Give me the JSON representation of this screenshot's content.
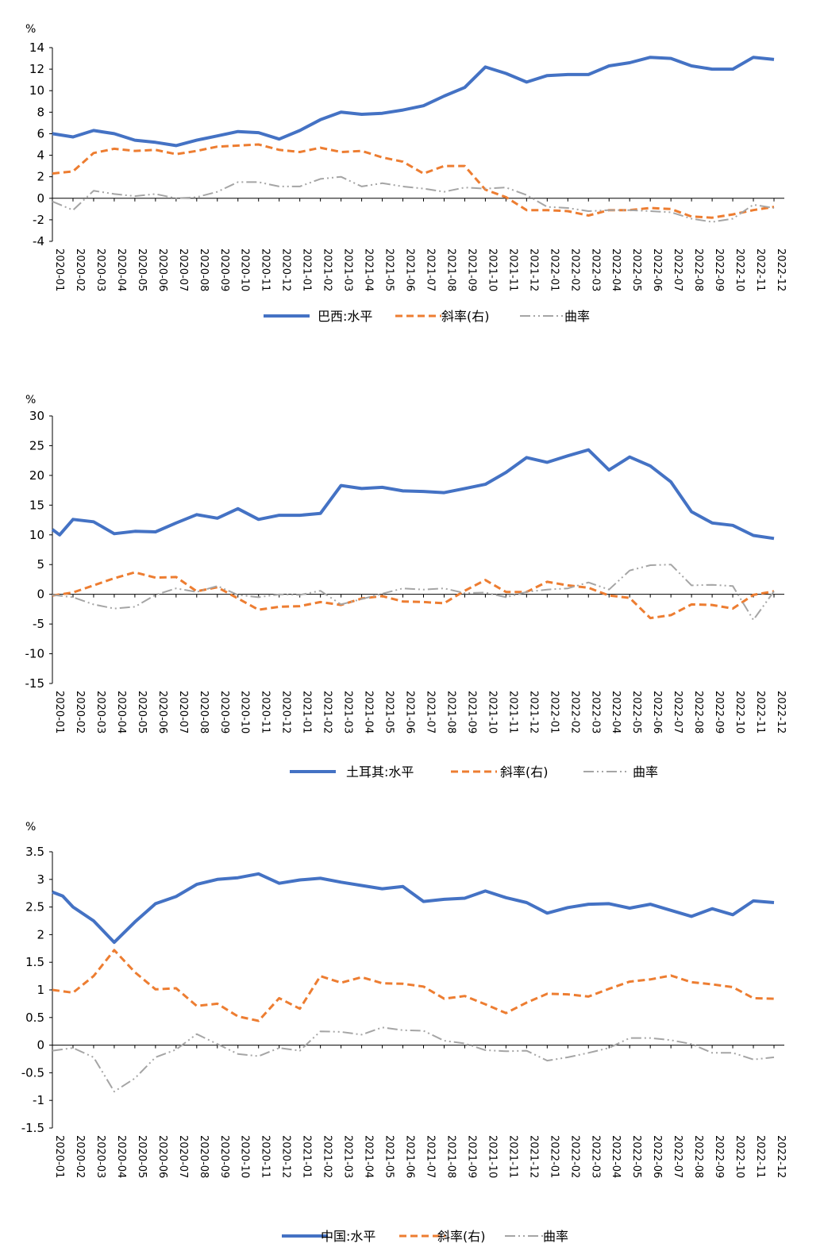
{
  "colors": {
    "level": "#4472C4",
    "slope": "#ED7D31",
    "curvature": "#A5A5A5",
    "axis": "#000000"
  },
  "chart_data": [
    {
      "type": "line",
      "unit": "%",
      "ylim": [
        -4,
        14
      ],
      "yticks": [
        -4,
        -2,
        0,
        2,
        4,
        6,
        8,
        10,
        12,
        14
      ],
      "categories": [
        "2020-01",
        "2020-02",
        "2020-03",
        "2020-04",
        "2020-05",
        "2020-06",
        "2020-07",
        "2020-08",
        "2020-09",
        "2020-10",
        "2020-11",
        "2020-12",
        "2021-01",
        "2021-02",
        "2021-03",
        "2021-04",
        "2021-05",
        "2021-06",
        "2021-07",
        "2021-08",
        "2021-09",
        "2021-10",
        "2021-11",
        "2021-12",
        "2022-01",
        "2022-02",
        "2022-03",
        "2022-04",
        "2022-05",
        "2022-06",
        "2022-07",
        "2022-08",
        "2022-09",
        "2022-10",
        "2022-11",
        "2022-12"
      ],
      "series": [
        {
          "name": "巴西:水平",
          "key": "level",
          "x": [
            0,
            1,
            2,
            3,
            4,
            5,
            6,
            7,
            8,
            9,
            10,
            11,
            12,
            13,
            14,
            15,
            16,
            17,
            18,
            19,
            20,
            21,
            22,
            23,
            24,
            25,
            26,
            27,
            28,
            29,
            30,
            31,
            32,
            33,
            34,
            35
          ],
          "values": [
            6.0,
            5.7,
            6.3,
            6.0,
            5.4,
            5.2,
            4.9,
            5.4,
            5.8,
            6.2,
            6.1,
            5.5,
            6.3,
            7.3,
            8.0,
            7.8,
            7.9,
            8.2,
            8.6,
            9.5,
            10.3,
            12.2,
            11.6,
            10.8,
            11.4,
            11.5,
            11.5,
            12.3,
            12.6,
            13.1,
            13.0,
            12.3,
            12.0,
            12.0,
            13.1,
            12.9
          ]
        },
        {
          "name": "斜率(右)",
          "key": "slope",
          "x": [
            0,
            1,
            2,
            3,
            4,
            5,
            6,
            7,
            8,
            9,
            10,
            11,
            12,
            13,
            14,
            15,
            16,
            17,
            18,
            19,
            20,
            21,
            22,
            23,
            24,
            25,
            26,
            27,
            28,
            29,
            30,
            31,
            32,
            33,
            34,
            35
          ],
          "values": [
            2.3,
            2.5,
            4.2,
            4.6,
            4.4,
            4.5,
            4.1,
            4.4,
            4.8,
            4.9,
            5.0,
            4.5,
            4.3,
            4.7,
            4.3,
            4.4,
            3.8,
            3.4,
            2.3,
            3.0,
            3.0,
            0.8,
            0.1,
            -1.1,
            -1.1,
            -1.2,
            -1.6,
            -1.1,
            -1.1,
            -0.9,
            -1.0,
            -1.7,
            -1.8,
            -1.5,
            -1.1,
            -0.8
          ]
        },
        {
          "name": "曲率",
          "key": "curvature",
          "x": [
            0,
            1,
            2,
            3,
            4,
            5,
            6,
            7,
            8,
            9,
            10,
            11,
            12,
            13,
            14,
            15,
            16,
            17,
            18,
            19,
            20,
            21,
            22,
            23,
            24,
            25,
            26,
            27,
            28,
            29,
            30,
            31,
            32,
            33,
            34,
            35
          ],
          "values": [
            -0.3,
            -1.1,
            0.7,
            0.4,
            0.2,
            0.4,
            0.0,
            0.1,
            0.6,
            1.5,
            1.5,
            1.1,
            1.1,
            1.8,
            2.0,
            1.1,
            1.4,
            1.1,
            0.9,
            0.6,
            1.0,
            0.9,
            1.0,
            0.3,
            -0.8,
            -0.9,
            -1.2,
            -1.1,
            -1.1,
            -1.2,
            -1.3,
            -1.9,
            -2.2,
            -1.9,
            -0.6,
            -0.9
          ]
        }
      ]
    },
    {
      "type": "line",
      "unit": "%",
      "ylim": [
        -15,
        30
      ],
      "yticks": [
        -15,
        -10,
        -5,
        0,
        5,
        10,
        15,
        20,
        25,
        30
      ],
      "categories": [
        "2020-01",
        "2020-02",
        "2020-03",
        "2020-04",
        "2020-05",
        "2020-06",
        "2020-07",
        "2020-08",
        "2020-09",
        "2020-10",
        "2020-11",
        "2020-12",
        "2021-01",
        "2021-02",
        "2021-03",
        "2021-04",
        "2021-05",
        "2021-06",
        "2021-07",
        "2021-08",
        "2021-09",
        "2021-10",
        "2021-11",
        "2021-12",
        "2022-01",
        "2022-02",
        "2022-03",
        "2022-04",
        "2022-05",
        "2022-06",
        "2022-07",
        "2022-08",
        "2022-09",
        "2022-10",
        "2022-11",
        "2022-12"
      ],
      "series": [
        {
          "name": "土耳其:水平",
          "key": "level",
          "x": [
            0,
            0.35,
            1,
            2,
            3,
            4,
            5,
            6,
            7,
            8,
            9,
            10,
            11,
            12,
            13,
            14,
            15,
            16,
            17,
            18,
            19,
            20,
            21,
            22,
            23,
            24,
            25,
            26,
            27,
            28,
            29,
            30,
            31,
            32,
            33,
            34,
            35
          ],
          "values": [
            10.9,
            10.0,
            12.6,
            12.2,
            10.2,
            10.6,
            10.5,
            12.0,
            13.4,
            12.8,
            14.4,
            12.6,
            13.3,
            13.3,
            13.6,
            18.3,
            17.8,
            18.0,
            17.4,
            17.3,
            17.1,
            17.8,
            18.5,
            20.5,
            23.0,
            22.2,
            23.3,
            24.3,
            20.9,
            23.1,
            21.6,
            18.9,
            13.9,
            12.0,
            11.6,
            9.9,
            9.4
          ]
        },
        {
          "name": "斜率(右)",
          "key": "slope",
          "x": [
            0,
            1,
            2,
            3,
            4,
            5,
            6,
            7,
            8,
            9,
            10,
            11,
            12,
            13,
            14,
            15,
            16,
            17,
            18,
            19,
            20,
            21,
            22,
            23,
            24,
            25,
            26,
            27,
            28,
            29,
            30,
            31,
            32,
            33,
            34,
            35
          ],
          "values": [
            -0.2,
            0.3,
            1.5,
            2.7,
            3.7,
            2.8,
            2.9,
            0.5,
            1.2,
            -0.7,
            -2.6,
            -2.1,
            -2.0,
            -1.3,
            -1.8,
            -0.7,
            -0.3,
            -1.2,
            -1.3,
            -1.5,
            0.6,
            2.4,
            0.4,
            0.4,
            2.1,
            1.5,
            1.1,
            -0.2,
            -0.6,
            -4.0,
            -3.5,
            -1.7,
            -1.8,
            -2.4,
            -0.1,
            0.5
          ]
        },
        {
          "name": "曲率",
          "key": "curvature",
          "x": [
            0,
            1,
            2,
            3,
            4,
            5,
            6,
            7,
            8,
            9,
            10,
            11,
            12,
            13,
            14,
            15,
            16,
            17,
            18,
            19,
            20,
            21,
            22,
            23,
            24,
            25,
            26,
            27,
            28,
            29,
            30,
            31,
            32,
            33,
            34,
            35
          ],
          "values": [
            -0.1,
            -0.5,
            -1.7,
            -2.4,
            -2.1,
            -0.1,
            1.0,
            0.4,
            1.4,
            -0.1,
            -0.5,
            0.0,
            -0.1,
            0.6,
            -1.7,
            -0.8,
            0.1,
            1.0,
            0.8,
            1.0,
            0.2,
            0.3,
            -0.5,
            0.4,
            0.8,
            1.0,
            2.0,
            0.8,
            4.0,
            4.9,
            5.0,
            1.5,
            1.6,
            1.4,
            -4.3,
            0.5
          ]
        }
      ]
    },
    {
      "type": "line",
      "unit": "%",
      "ylim": [
        -1.5,
        3.5
      ],
      "yticks": [
        -1.5,
        -1,
        -0.5,
        0,
        0.5,
        1,
        1.5,
        2,
        2.5,
        3,
        3.5
      ],
      "categories": [
        "2020-01",
        "2020-02",
        "2020-03",
        "2020-04",
        "2020-05",
        "2020-06",
        "2020-07",
        "2020-08",
        "2020-09",
        "2020-10",
        "2020-11",
        "2020-12",
        "2021-01",
        "2021-02",
        "2021-03",
        "2021-04",
        "2021-05",
        "2021-06",
        "2021-07",
        "2021-08",
        "2021-09",
        "2021-10",
        "2021-11",
        "2021-12",
        "2022-01",
        "2022-02",
        "2022-03",
        "2022-04",
        "2022-05",
        "2022-06",
        "2022-07",
        "2022-08",
        "2022-09",
        "2022-10",
        "2022-11",
        "2022-12"
      ],
      "series": [
        {
          "name": "中国:水平",
          "key": "level",
          "x": [
            0,
            0.5,
            1,
            2,
            3,
            4,
            5,
            6,
            7,
            8,
            9,
            10,
            11,
            12,
            13,
            14,
            15,
            16,
            17,
            18,
            19,
            20,
            21,
            22,
            23,
            24,
            25,
            26,
            27,
            28,
            29,
            30,
            31,
            32,
            33,
            34,
            35
          ],
          "values": [
            2.77,
            2.7,
            2.5,
            2.25,
            1.86,
            2.23,
            2.56,
            2.69,
            2.91,
            3.0,
            3.03,
            3.1,
            2.93,
            2.99,
            3.02,
            2.95,
            2.89,
            2.83,
            2.87,
            2.6,
            2.64,
            2.66,
            2.79,
            2.67,
            2.58,
            2.39,
            2.49,
            2.55,
            2.56,
            2.48,
            2.55,
            2.44,
            2.33,
            2.47,
            2.36,
            2.61,
            2.58
          ]
        },
        {
          "name": "斜率(右)",
          "key": "slope",
          "x": [
            0,
            1,
            2,
            3,
            4,
            5,
            6,
            7,
            8,
            9,
            10,
            11,
            12,
            13,
            14,
            15,
            16,
            17,
            18,
            19,
            20,
            21,
            22,
            23,
            24,
            25,
            26,
            27,
            28,
            29,
            30,
            31,
            32,
            33,
            34,
            35
          ],
          "values": [
            1.0,
            0.95,
            1.25,
            1.72,
            1.32,
            1.01,
            1.03,
            0.71,
            0.75,
            0.52,
            0.44,
            0.85,
            0.66,
            1.25,
            1.13,
            1.23,
            1.12,
            1.11,
            1.06,
            0.84,
            0.89,
            0.74,
            0.58,
            0.77,
            0.93,
            0.92,
            0.88,
            1.02,
            1.15,
            1.19,
            1.26,
            1.14,
            1.1,
            1.05,
            0.85,
            0.84
          ]
        },
        {
          "name": "曲率",
          "key": "curvature",
          "x": [
            0,
            1,
            2,
            3,
            4,
            5,
            6,
            7,
            8,
            9,
            10,
            11,
            12,
            13,
            14,
            15,
            16,
            17,
            18,
            19,
            20,
            21,
            22,
            23,
            24,
            25,
            26,
            27,
            28,
            29,
            30,
            31,
            32,
            33,
            34,
            35
          ],
          "values": [
            -0.1,
            -0.05,
            -0.22,
            -0.84,
            -0.6,
            -0.22,
            -0.08,
            0.2,
            0.02,
            -0.16,
            -0.2,
            -0.05,
            -0.1,
            0.25,
            0.24,
            0.19,
            0.32,
            0.27,
            0.26,
            0.08,
            0.03,
            -0.09,
            -0.11,
            -0.1,
            -0.28,
            -0.22,
            -0.14,
            -0.05,
            0.13,
            0.13,
            0.09,
            0.02,
            -0.14,
            -0.14,
            -0.26,
            -0.22
          ]
        }
      ]
    }
  ]
}
